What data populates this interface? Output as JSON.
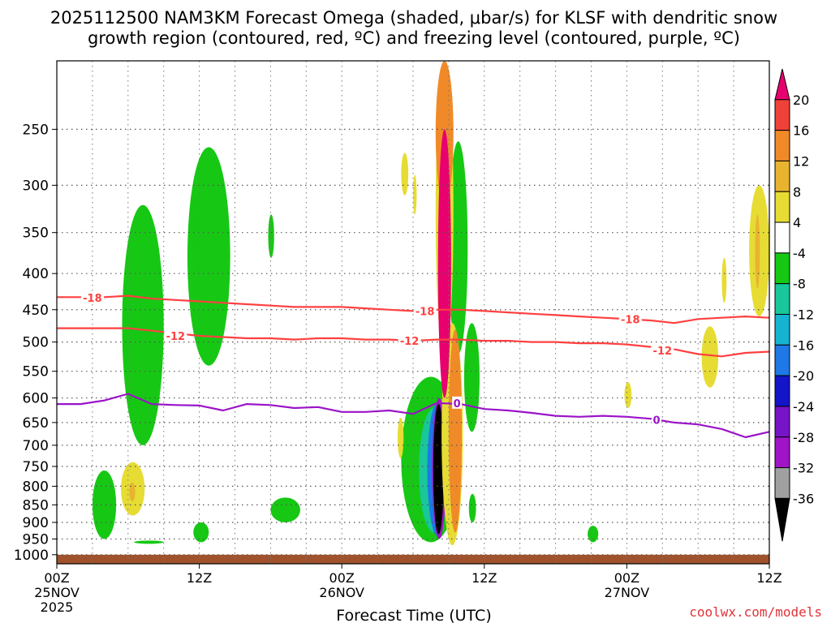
{
  "header": {
    "title_line1": "2025112500 NAM3KM Forecast Omega (shaded, μbar/s) for KLSF with dendritic snow",
    "title_line2": "growth region (contoured, red, ºC) and freezing level (contoured, purple, ºC)"
  },
  "footer": {
    "xlabel": "Forecast Time (UTC)",
    "credit": "coolwx.com/models"
  },
  "chart_data": {
    "type": "heatmap",
    "title": "2025112500 NAM3KM Forecast Omega (shaded, μbar/s) for KLSF with dendritic snow growth region (contoured, red, ºC) and freezing level (contoured, purple, ºC)",
    "xlabel": "Forecast Time (UTC)",
    "ylabel": "",
    "x_unit": "hours since 2025-11-25 00Z",
    "xlim": [
      0,
      60
    ],
    "ylim": [
      1030,
      200
    ],
    "y_scale": "log-pressure",
    "grid": true,
    "x_ticks": [
      {
        "x": 0,
        "label": "00Z",
        "label2": "25NOV",
        "label3": "2025"
      },
      {
        "x": 12,
        "label": "12Z",
        "label2": "",
        "label3": ""
      },
      {
        "x": 24,
        "label": "00Z",
        "label2": "26NOV",
        "label3": ""
      },
      {
        "x": 36,
        "label": "12Z",
        "label2": "",
        "label3": ""
      },
      {
        "x": 48,
        "label": "00Z",
        "label2": "27NOV",
        "label3": ""
      },
      {
        "x": 60,
        "label": "12Z",
        "label2": "",
        "label3": ""
      }
    ],
    "y_ticks": [
      250,
      300,
      350,
      400,
      450,
      500,
      550,
      600,
      650,
      700,
      750,
      800,
      850,
      900,
      950,
      1000
    ],
    "colorbar": {
      "labels": [
        "20",
        "16",
        "12",
        "8",
        "4",
        "-4",
        "-8",
        "-12",
        "-16",
        "-20",
        "-24",
        "-28",
        "-32",
        "-36"
      ],
      "colors": [
        "#e8006f",
        "#f0403a",
        "#f08a28",
        "#e8b430",
        "#e6dc34",
        "#ffffff",
        "#16c814",
        "#19c79a",
        "#16b4d2",
        "#1e78e6",
        "#1414c8",
        "#7814c8",
        "#a014c8",
        "#a0a0a0",
        "#000000"
      ]
    },
    "series": [
      {
        "name": "-18",
        "color": "#ff4040",
        "x": [
          0,
          2,
          4,
          6,
          8,
          10,
          12,
          14,
          16,
          18,
          20,
          22,
          24,
          26,
          28,
          30,
          32,
          34,
          36,
          38,
          40,
          42,
          44,
          46,
          48,
          50,
          52,
          54,
          56,
          58,
          60
        ],
        "y": [
          432,
          432,
          432,
          430,
          434,
          436,
          438,
          440,
          442,
          444,
          446,
          446,
          446,
          448,
          450,
          452,
          450,
          450,
          452,
          454,
          456,
          458,
          460,
          462,
          464,
          466,
          470,
          464,
          462,
          460,
          462
        ]
      },
      {
        "name": "-12",
        "color": "#ff4040",
        "x": [
          0,
          2,
          4,
          6,
          8,
          10,
          12,
          14,
          16,
          18,
          20,
          22,
          24,
          26,
          28,
          30,
          32,
          34,
          36,
          38,
          40,
          42,
          44,
          46,
          48,
          50,
          52,
          54,
          56,
          58,
          60
        ],
        "y": [
          478,
          478,
          478,
          478,
          482,
          486,
          490,
          492,
          494,
          494,
          496,
          494,
          494,
          496,
          496,
          498,
          496,
          496,
          498,
          498,
          500,
          500,
          502,
          502,
          504,
          508,
          512,
          520,
          524,
          518,
          516
        ]
      },
      {
        "name": "0",
        "color": "#9a14c8",
        "x": [
          0,
          2,
          4,
          6,
          8,
          10,
          12,
          14,
          16,
          18,
          20,
          22,
          24,
          26,
          28,
          30,
          32,
          34,
          36,
          38,
          40,
          42,
          44,
          46,
          48,
          50,
          52,
          54,
          56,
          58,
          60
        ],
        "y": [
          612,
          612,
          605,
          592,
          612,
          614,
          615,
          625,
          612,
          614,
          620,
          618,
          628,
          628,
          625,
          632,
          610,
          612,
          622,
          625,
          630,
          636,
          638,
          636,
          638,
          642,
          650,
          654,
          664,
          682,
          670
        ]
      }
    ],
    "contour_labels": [
      {
        "text": "-18",
        "x": 3.0,
        "y": 433,
        "color": "#ff4040"
      },
      {
        "text": "-18",
        "x": 31.0,
        "y": 452,
        "color": "#ff4040"
      },
      {
        "text": "-18",
        "x": 48.3,
        "y": 464,
        "color": "#ff4040"
      },
      {
        "text": "-12",
        "x": 10.0,
        "y": 490,
        "color": "#ff4040"
      },
      {
        "text": "-12",
        "x": 29.7,
        "y": 498,
        "color": "#ff4040"
      },
      {
        "text": "-12",
        "x": 51.0,
        "y": 514,
        "color": "#ff4040"
      },
      {
        "text": "0",
        "x": 33.7,
        "y": 610,
        "color": "#9a14c8"
      },
      {
        "text": "0",
        "x": 50.5,
        "y": 644,
        "color": "#9a14c8"
      }
    ],
    "shaded_regions": [
      {
        "band": "-4",
        "color": "#16c814",
        "x0": 5.5,
        "x1": 9.0,
        "p0": 320,
        "p1": 700
      },
      {
        "band": "-4",
        "color": "#16c814",
        "x0": 11.0,
        "x1": 14.6,
        "p0": 265,
        "p1": 540
      },
      {
        "band": "-4",
        "color": "#16c814",
        "x0": 17.8,
        "x1": 18.3,
        "p0": 330,
        "p1": 380
      },
      {
        "band": "-4",
        "color": "#16c814",
        "x0": 3.0,
        "x1": 5.0,
        "p0": 760,
        "p1": 950
      },
      {
        "band": "-4",
        "color": "#16c814",
        "x0": 11.5,
        "x1": 12.8,
        "p0": 900,
        "p1": 960
      },
      {
        "band": "-4",
        "color": "#16c814",
        "x0": 18.0,
        "x1": 20.5,
        "p0": 830,
        "p1": 900
      },
      {
        "band": "-4",
        "color": "#16c814",
        "x0": 6.5,
        "x1": 9.0,
        "p0": 955,
        "p1": 965
      },
      {
        "band": "-4",
        "color": "#16c814",
        "x0": 29.0,
        "x1": 34.0,
        "p0": 560,
        "p1": 960
      },
      {
        "band": "-4",
        "color": "#16c814",
        "x0": 33.0,
        "x1": 34.6,
        "p0": 260,
        "p1": 520
      },
      {
        "band": "-4",
        "color": "#16c814",
        "x0": 34.3,
        "x1": 35.6,
        "p0": 470,
        "p1": 670
      },
      {
        "band": "-4",
        "color": "#16c814",
        "x0": 34.7,
        "x1": 35.3,
        "p0": 820,
        "p1": 900
      },
      {
        "band": "-4",
        "color": "#16c814",
        "x0": 44.7,
        "x1": 45.6,
        "p0": 910,
        "p1": 960
      },
      {
        "band": "-12",
        "color": "#19c79a",
        "x0": 30.5,
        "x1": 33.0,
        "p0": 620,
        "p1": 930
      },
      {
        "band": "-20",
        "color": "#1e78e6",
        "x0": 31.2,
        "x1": 32.9,
        "p0": 610,
        "p1": 940
      },
      {
        "band": "-28",
        "color": "#a014c8",
        "x0": 31.6,
        "x1": 32.8,
        "p0": 600,
        "p1": 950
      },
      {
        "band": "<-36",
        "color": "#000000",
        "x0": 31.7,
        "x1": 32.6,
        "p0": 612,
        "p1": 935
      },
      {
        "band": "4",
        "color": "#e6dc34",
        "x0": 31.9,
        "x1": 33.4,
        "p0": 200,
        "p1": 530
      },
      {
        "band": "4",
        "color": "#e6dc34",
        "x0": 32.4,
        "x1": 34.2,
        "p0": 470,
        "p1": 970
      },
      {
        "band": "4",
        "color": "#e6dc34",
        "x0": 5.4,
        "x1": 7.4,
        "p0": 740,
        "p1": 880
      },
      {
        "band": "4",
        "color": "#e6dc34",
        "x0": 28.7,
        "x1": 29.2,
        "p0": 640,
        "p1": 730
      },
      {
        "band": "4",
        "color": "#e6dc34",
        "x0": 29.0,
        "x1": 29.6,
        "p0": 270,
        "p1": 310
      },
      {
        "band": "4",
        "color": "#e6dc34",
        "x0": 30.0,
        "x1": 30.3,
        "p0": 290,
        "p1": 330
      },
      {
        "band": "4",
        "color": "#e6dc34",
        "x0": 47.8,
        "x1": 48.4,
        "p0": 570,
        "p1": 620
      },
      {
        "band": "4",
        "color": "#e6dc34",
        "x0": 54.3,
        "x1": 55.7,
        "p0": 475,
        "p1": 580
      },
      {
        "band": "4",
        "color": "#e6dc34",
        "x0": 58.3,
        "x1": 60.0,
        "p0": 300,
        "p1": 460
      },
      {
        "band": "4",
        "color": "#e6dc34",
        "x0": 56.0,
        "x1": 56.4,
        "p0": 380,
        "p1": 440
      },
      {
        "band": "12",
        "color": "#f08a28",
        "x0": 31.9,
        "x1": 33.4,
        "p0": 200,
        "p1": 320
      },
      {
        "band": "12",
        "color": "#f08a28",
        "x0": 33.0,
        "x1": 34.1,
        "p0": 480,
        "p1": 930
      },
      {
        "band": "8",
        "color": "#e8b430",
        "x0": 6.1,
        "x1": 6.6,
        "p0": 790,
        "p1": 840
      },
      {
        "band": "8",
        "color": "#e8b430",
        "x0": 58.8,
        "x1": 59.2,
        "p0": 330,
        "p1": 420
      },
      {
        "band": "20",
        "color": "#e8006f",
        "x0": 32.1,
        "x1": 33.2,
        "p0": 250,
        "p1": 600
      }
    ],
    "terrain": {
      "color": "#a0522d",
      "surface_p": 1000
    }
  }
}
